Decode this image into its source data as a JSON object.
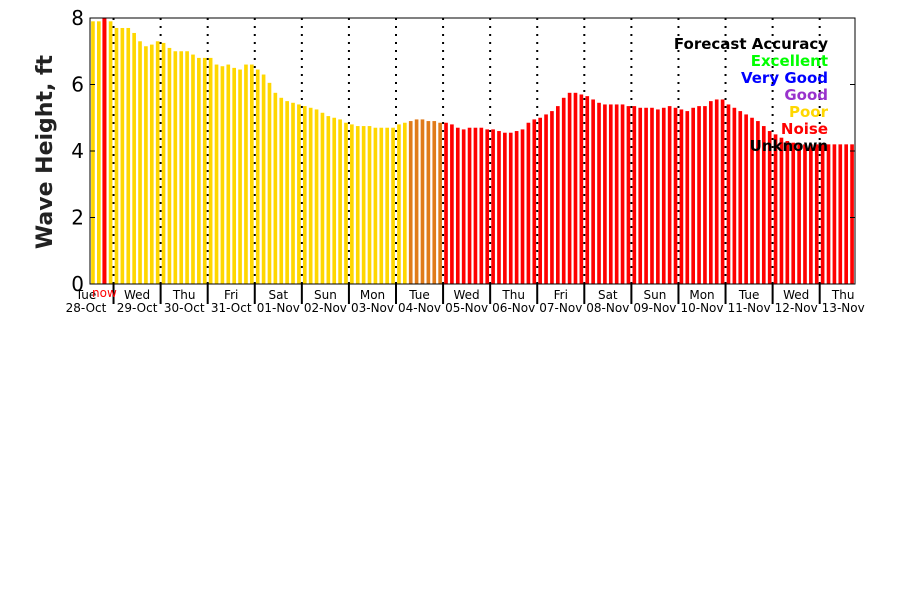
{
  "chart_data": {
    "type": "bar",
    "ylabel": "Wave Height, ft",
    "ylim": [
      0,
      8
    ],
    "yticks": [
      0,
      2,
      4,
      6,
      8
    ],
    "grid": false,
    "legend_position": "top-right",
    "now_label": "now",
    "colors": {
      "Excellent": "#00ff00",
      "Very Good": "#0000ff",
      "Good": "#9933cc",
      "Poor": "#ffd700",
      "Noise": "#ff0000",
      "Unknown": "#000000",
      "transition": "#e07b1a",
      "axis": "#000000"
    },
    "legend": {
      "title": "Forecast Accuracy",
      "entries": [
        "Excellent",
        "Very Good",
        "Good",
        "Poor",
        "Noise",
        "Unknown"
      ]
    },
    "days": [
      {
        "dow": "Tue",
        "date": "28-Oct"
      },
      {
        "dow": "Wed",
        "date": "29-Oct"
      },
      {
        "dow": "Thu",
        "date": "30-Oct"
      },
      {
        "dow": "Fri",
        "date": "31-Oct"
      },
      {
        "dow": "Sat",
        "date": "01-Nov"
      },
      {
        "dow": "Sun",
        "date": "02-Nov"
      },
      {
        "dow": "Mon",
        "date": "03-Nov"
      },
      {
        "dow": "Tue",
        "date": "04-Nov"
      },
      {
        "dow": "Wed",
        "date": "05-Nov"
      },
      {
        "dow": "Thu",
        "date": "06-Nov"
      },
      {
        "dow": "Fri",
        "date": "07-Nov"
      },
      {
        "dow": "Sat",
        "date": "08-Nov"
      },
      {
        "dow": "Sun",
        "date": "09-Nov"
      },
      {
        "dow": "Mon",
        "date": "10-Nov"
      },
      {
        "dow": "Tue",
        "date": "11-Nov"
      },
      {
        "dow": "Wed",
        "date": "12-Nov"
      },
      {
        "dow": "Thu",
        "date": "13-Nov"
      }
    ],
    "series": [
      {
        "values": [
          7.9,
          7.9,
          7.9,
          7.9,
          7.7,
          7.7,
          7.7,
          7.55,
          7.3,
          7.15,
          7.2,
          7.3,
          7.25,
          7.1,
          7.0,
          7.0,
          7.0,
          6.9,
          6.8,
          6.8,
          6.8,
          6.6,
          6.55,
          6.6,
          6.5,
          6.45,
          6.6,
          6.6,
          6.45,
          6.3,
          6.05,
          5.75,
          5.6,
          5.5,
          5.45,
          5.4,
          5.35,
          5.3,
          5.25,
          5.15,
          5.05,
          5.0,
          4.95,
          4.85,
          4.8,
          4.75,
          4.75,
          4.75,
          4.7,
          4.7,
          4.7,
          4.7,
          4.8,
          4.85,
          4.9,
          4.95,
          4.95,
          4.9,
          4.9,
          4.85,
          4.85,
          4.8,
          4.7,
          4.65,
          4.7,
          4.7,
          4.7,
          4.65,
          4.65,
          4.6,
          4.55,
          4.55,
          4.6,
          4.65,
          4.85,
          4.95,
          5.0,
          5.1,
          5.2,
          5.35,
          5.6,
          5.75,
          5.75,
          5.7,
          5.65,
          5.55,
          5.45,
          5.4,
          5.4,
          5.4,
          5.4,
          5.35,
          5.35,
          5.3,
          5.3,
          5.3,
          5.25,
          5.3,
          5.35,
          5.3,
          5.25,
          5.2,
          5.3,
          5.35,
          5.35,
          5.5,
          5.55,
          5.55,
          5.4,
          5.3,
          5.2,
          5.1,
          5.0,
          4.9,
          4.75,
          4.6,
          4.5,
          4.4,
          4.3,
          4.25,
          4.2,
          4.2,
          4.2,
          4.2,
          4.2,
          4.2,
          4.2,
          4.2,
          4.2,
          4.2
        ],
        "accuracy": [
          "Poor",
          "Poor",
          "Poor",
          "Poor",
          "Poor",
          "Poor",
          "Poor",
          "Poor",
          "Poor",
          "Poor",
          "Poor",
          "Poor",
          "Poor",
          "Poor",
          "Poor",
          "Poor",
          "Poor",
          "Poor",
          "Poor",
          "Poor",
          "Poor",
          "Poor",
          "Poor",
          "Poor",
          "Poor",
          "Poor",
          "Poor",
          "Poor",
          "Poor",
          "Poor",
          "Poor",
          "Poor",
          "Poor",
          "Poor",
          "Poor",
          "Poor",
          "Poor",
          "Poor",
          "Poor",
          "Poor",
          "Poor",
          "Poor",
          "Poor",
          "Poor",
          "Poor",
          "Poor",
          "Poor",
          "Poor",
          "Poor",
          "Poor",
          "Poor",
          "Poor",
          "Poor",
          "Poor",
          "Noise",
          "Noise",
          "Noise",
          "Noise",
          "Noise",
          "Noise",
          "Noise",
          "Noise",
          "Noise",
          "Noise",
          "Noise",
          "Noise",
          "Noise",
          "Noise",
          "Noise",
          "Noise",
          "Noise",
          "Noise",
          "Noise",
          "Noise",
          "Noise",
          "Noise",
          "Noise",
          "Noise",
          "Noise",
          "Noise",
          "Noise",
          "Noise",
          "Noise",
          "Noise",
          "Noise",
          "Noise",
          "Noise",
          "Noise",
          "Noise",
          "Noise",
          "Noise",
          "Noise",
          "Noise",
          "Noise",
          "Noise",
          "Noise",
          "Noise",
          "Noise",
          "Noise",
          "Noise",
          "Noise",
          "Noise",
          "Noise",
          "Noise",
          "Noise",
          "Noise",
          "Noise",
          "Noise",
          "Noise",
          "Noise",
          "Noise",
          "Noise",
          "Noise",
          "Noise",
          "Noise",
          "Noise",
          "Noise",
          "Noise",
          "Noise",
          "Noise",
          "Noise",
          "Noise",
          "Noise",
          "Noise",
          "Noise",
          "Noise",
          "Noise",
          "Noise",
          "Noise",
          "Noise"
        ]
      }
    ]
  }
}
